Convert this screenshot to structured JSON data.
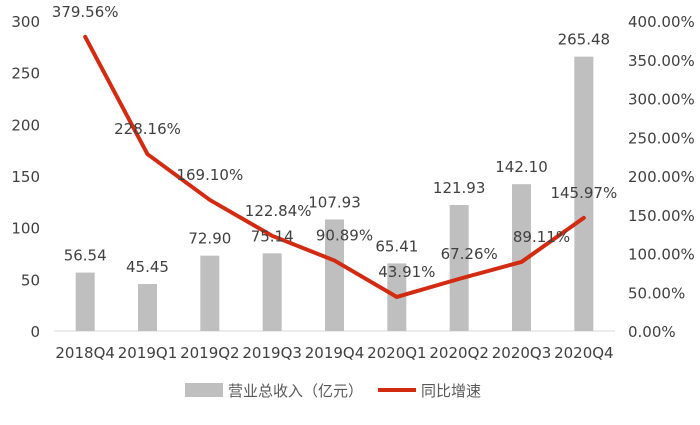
{
  "chart_data": {
    "type": "bar+line",
    "categories": [
      "2018Q4",
      "2019Q1",
      "2019Q2",
      "2019Q3",
      "2019Q4",
      "2020Q1",
      "2020Q2",
      "2020Q3",
      "2020Q4"
    ],
    "series": [
      {
        "name": "营业总收入（亿元）",
        "type": "bar",
        "axis": "left",
        "color": "#bfbfbf",
        "values": [
          56.54,
          45.45,
          72.9,
          75.14,
          107.93,
          65.41,
          121.93,
          142.1,
          265.48
        ],
        "labels": [
          "56.54",
          "45.45",
          "72.90",
          "75.14",
          "107.93",
          "65.41",
          "121.93",
          "142.10",
          "265.48"
        ]
      },
      {
        "name": "同比增速",
        "type": "line",
        "axis": "right",
        "color": "#d22b12",
        "values": [
          379.56,
          228.16,
          169.1,
          122.84,
          90.89,
          43.91,
          67.26,
          89.11,
          145.97
        ],
        "labels": [
          "379.56%",
          "228.16%",
          "169.10%",
          "122.84%",
          "90.89%",
          "43.91%",
          "67.26%",
          "89.11%",
          "145.97%"
        ]
      }
    ],
    "y_left": {
      "ylim": [
        0,
        300
      ],
      "ticks": [
        "0",
        "50",
        "100",
        "150",
        "200",
        "250",
        "300"
      ]
    },
    "y_right": {
      "ylim": [
        0,
        400
      ],
      "ticks": [
        "0.00%",
        "50.00%",
        "100.00%",
        "150.00%",
        "200.00%",
        "250.00%",
        "300.00%",
        "350.00%",
        "400.00%"
      ]
    },
    "grid": false,
    "legend_position": "bottom"
  }
}
